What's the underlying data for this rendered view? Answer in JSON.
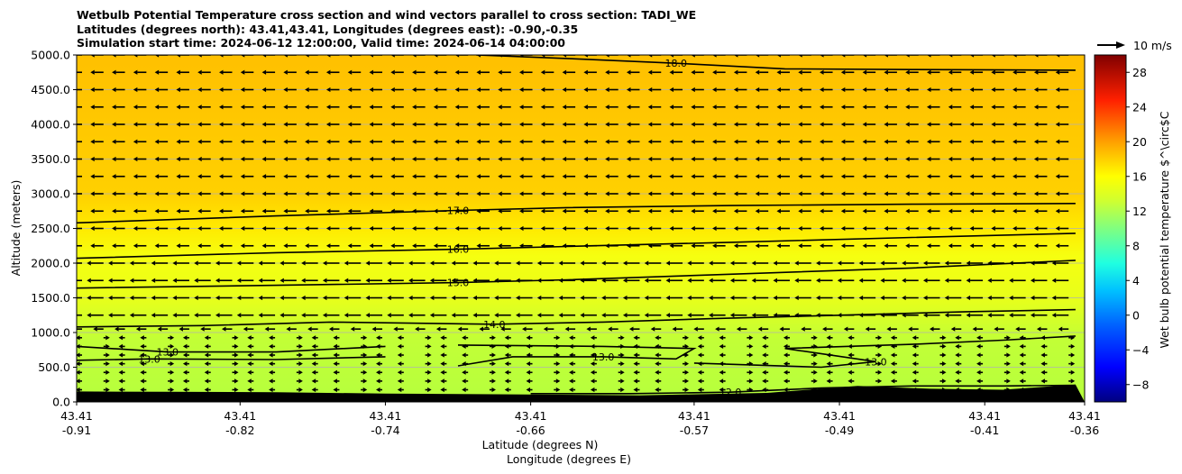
{
  "chart_data": {
    "type": "heatmap",
    "title": [
      "Wetbulb Potential Temperature cross section and wind vectors parallel to cross section: TADI_WE",
      "Latitudes (degrees north): 43.41,43.41, Longitudes (degrees east): -0.90,-0.35",
      "Simulation start time: 2024-06-12 12:00:00, Valid time: 2024-06-14 04:00:00"
    ],
    "xlabel": [
      "Latitude (degrees N)",
      "Longitude (degrees E)"
    ],
    "ylabel": "Altitude (meters)",
    "x_ticks": [
      {
        "lat": "43.41",
        "lon": "-0.91",
        "pos": -0.91
      },
      {
        "lat": "43.41",
        "lon": "-0.82",
        "pos": -0.82
      },
      {
        "lat": "43.41",
        "lon": "-0.74",
        "pos": -0.74
      },
      {
        "lat": "43.41",
        "lon": "-0.66",
        "pos": -0.66
      },
      {
        "lat": "43.41",
        "lon": "-0.57",
        "pos": -0.57
      },
      {
        "lat": "43.41",
        "lon": "-0.49",
        "pos": -0.49
      },
      {
        "lat": "43.41",
        "lon": "-0.41",
        "pos": -0.41
      },
      {
        "lat": "43.41",
        "lon": "-0.36",
        "pos": -0.355
      }
    ],
    "xlim": [
      -0.91,
      -0.355
    ],
    "y_ticks": [
      "0.0",
      "500.0",
      "1000.0",
      "1500.0",
      "2000.0",
      "2500.0",
      "3000.0",
      "3500.0",
      "4000.0",
      "4500.0",
      "5000.0"
    ],
    "ylim": [
      0,
      5000
    ],
    "grid": "horizontal",
    "colorbar": {
      "label": "Wet bulb potential temperature $^\\circ$C",
      "range": [
        -10,
        30
      ],
      "ticks": [
        "−8",
        "−4",
        "0",
        "4",
        "8",
        "12",
        "16",
        "20",
        "24",
        "28"
      ],
      "tick_values": [
        -8,
        -4,
        0,
        4,
        8,
        12,
        16,
        20,
        24,
        28
      ]
    },
    "quiver_key": "10 m/s",
    "contours": [
      {
        "level": 12.0,
        "label": "12.0",
        "points": [
          [
            -0.66,
            120
          ],
          [
            -0.605,
            120
          ],
          [
            -0.55,
            140
          ],
          [
            -0.5,
            200
          ],
          [
            -0.45,
            230
          ],
          [
            -0.4,
            230
          ],
          [
            -0.36,
            240
          ]
        ]
      },
      {
        "level": 13.0,
        "label": "13.0",
        "points": [
          [
            -0.91,
            600
          ],
          [
            -0.87,
            620
          ],
          [
            -0.8,
            610
          ],
          [
            -0.74,
            650
          ]
        ]
      },
      {
        "level": 13.0,
        "label": "13.0",
        "points": [
          [
            -0.91,
            800
          ],
          [
            -0.86,
            720
          ],
          [
            -0.8,
            720
          ],
          [
            -0.74,
            800
          ]
        ]
      },
      {
        "level": 13.0,
        "label": "13.0",
        "points": [
          [
            -0.7,
            520
          ],
          [
            -0.67,
            650
          ],
          [
            -0.62,
            650
          ],
          [
            -0.58,
            620
          ],
          [
            -0.57,
            770
          ],
          [
            -0.62,
            800
          ],
          [
            -0.7,
            820
          ]
        ]
      },
      {
        "level": 13.0,
        "label": "13.0",
        "points": [
          [
            -0.57,
            560
          ],
          [
            -0.5,
            500
          ],
          [
            -0.47,
            580
          ],
          [
            -0.52,
            770
          ],
          [
            -0.45,
            830
          ],
          [
            -0.4,
            890
          ],
          [
            -0.36,
            950
          ]
        ]
      },
      {
        "level": 14.0,
        "label": "14.0",
        "points": [
          [
            -0.91,
            1080
          ],
          [
            -0.84,
            1100
          ],
          [
            -0.77,
            1150
          ],
          [
            -0.68,
            1120
          ],
          [
            -0.62,
            1150
          ],
          [
            -0.56,
            1200
          ],
          [
            -0.49,
            1250
          ],
          [
            -0.42,
            1300
          ],
          [
            -0.36,
            1330
          ]
        ]
      },
      {
        "level": 15.0,
        "label": "15.0",
        "points": [
          [
            -0.91,
            1640
          ],
          [
            -0.8,
            1680
          ],
          [
            -0.7,
            1720
          ],
          [
            -0.64,
            1760
          ],
          [
            -0.55,
            1840
          ],
          [
            -0.45,
            1930
          ],
          [
            -0.36,
            2040
          ]
        ]
      },
      {
        "level": 16.0,
        "label": "16.0",
        "points": [
          [
            -0.91,
            2070
          ],
          [
            -0.8,
            2150
          ],
          [
            -0.7,
            2200
          ],
          [
            -0.64,
            2240
          ],
          [
            -0.55,
            2300
          ],
          [
            -0.45,
            2370
          ],
          [
            -0.36,
            2430
          ]
        ]
      },
      {
        "level": 17.0,
        "label": "17.0",
        "points": [
          [
            -0.91,
            2580
          ],
          [
            -0.8,
            2680
          ],
          [
            -0.7,
            2760
          ],
          [
            -0.64,
            2800
          ],
          [
            -0.55,
            2830
          ],
          [
            -0.45,
            2850
          ],
          [
            -0.36,
            2860
          ]
        ]
      },
      {
        "level": 18.0,
        "label": "18.0",
        "points": [
          [
            -0.69,
            5000
          ],
          [
            -0.64,
            4950
          ],
          [
            -0.58,
            4880
          ],
          [
            -0.52,
            4800
          ],
          [
            -0.45,
            4790
          ],
          [
            -0.36,
            4780
          ]
        ]
      }
    ],
    "terrain": [
      [
        -0.91,
        150
      ],
      [
        -0.86,
        145
      ],
      [
        -0.8,
        140
      ],
      [
        -0.74,
        120
      ],
      [
        -0.68,
        110
      ],
      [
        -0.6,
        95
      ],
      [
        -0.53,
        130
      ],
      [
        -0.48,
        230
      ],
      [
        -0.44,
        190
      ],
      [
        -0.4,
        175
      ],
      [
        -0.36,
        250
      ]
    ]
  },
  "colors": {
    "cmap": [
      "#000080",
      "#0000ff",
      "#0080ff",
      "#00e0ff",
      "#40ffc0",
      "#a0ff60",
      "#e0ff20",
      "#ffff00",
      "#ffc000",
      "#ff6000",
      "#ff0000",
      "#800000"
    ],
    "field_low": "#b6ff3e",
    "field_mid": "#e8ff1a",
    "field_high": "#ffc000",
    "terrain": "#000000",
    "grid": "#b0b0b0"
  }
}
